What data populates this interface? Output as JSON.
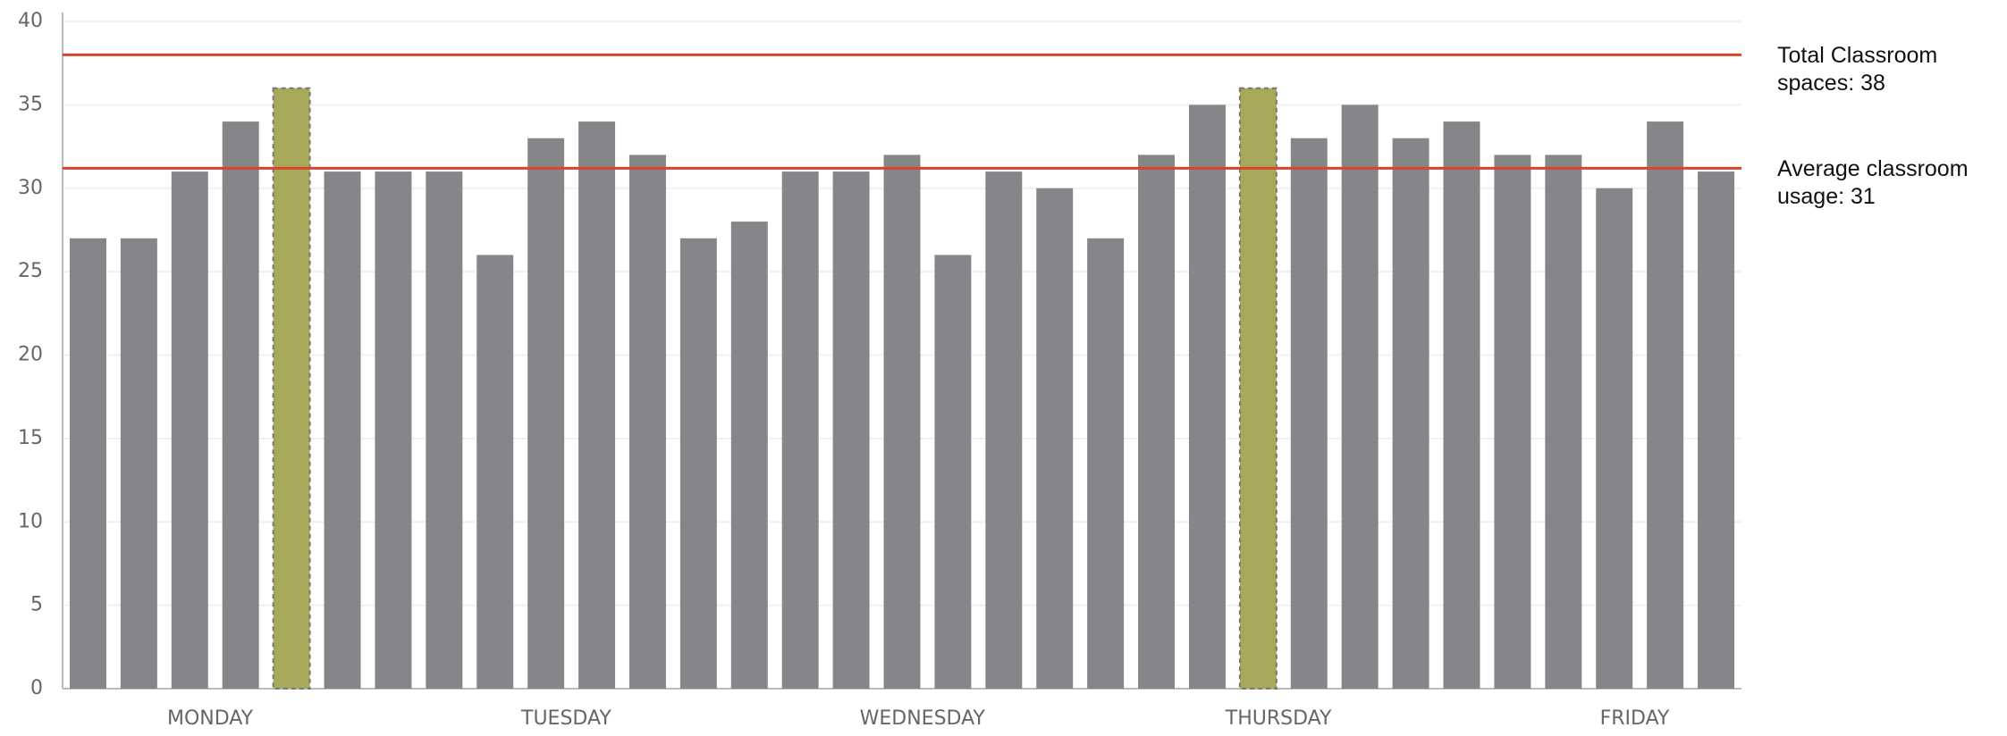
{
  "chart_data": {
    "type": "bar",
    "categories": [
      null,
      null,
      "MONDAY",
      null,
      null,
      null,
      null,
      null,
      null,
      "TUESDAY",
      null,
      null,
      null,
      null,
      null,
      null,
      "WEDNESDAY",
      null,
      null,
      null,
      null,
      null,
      null,
      "THURSDAY",
      null,
      null,
      null,
      null,
      null,
      null,
      "FRIDAY",
      null,
      null
    ],
    "values": [
      27,
      27,
      31,
      34,
      36,
      31,
      31,
      31,
      26,
      33,
      34,
      32,
      27,
      28,
      31,
      31,
      32,
      26,
      31,
      30,
      27,
      32,
      35,
      36,
      33,
      35,
      33,
      34,
      32,
      32,
      30,
      34,
      31
    ],
    "color": "#84868a",
    "highlight_color": "#a7a85a",
    "highlight": [
      4,
      23
    ],
    "ylim": [
      0,
      40
    ],
    "yticks": [
      0,
      5,
      10,
      15,
      20,
      25,
      30,
      35,
      40
    ],
    "grid": true,
    "reference_lines": [
      {
        "value": 38,
        "label": "Total Classroom spaces: 38",
        "color": "#d9442a"
      },
      {
        "value": 31.2,
        "label": "Average classroom usage: 31",
        "color": "#d9442a"
      }
    ]
  }
}
